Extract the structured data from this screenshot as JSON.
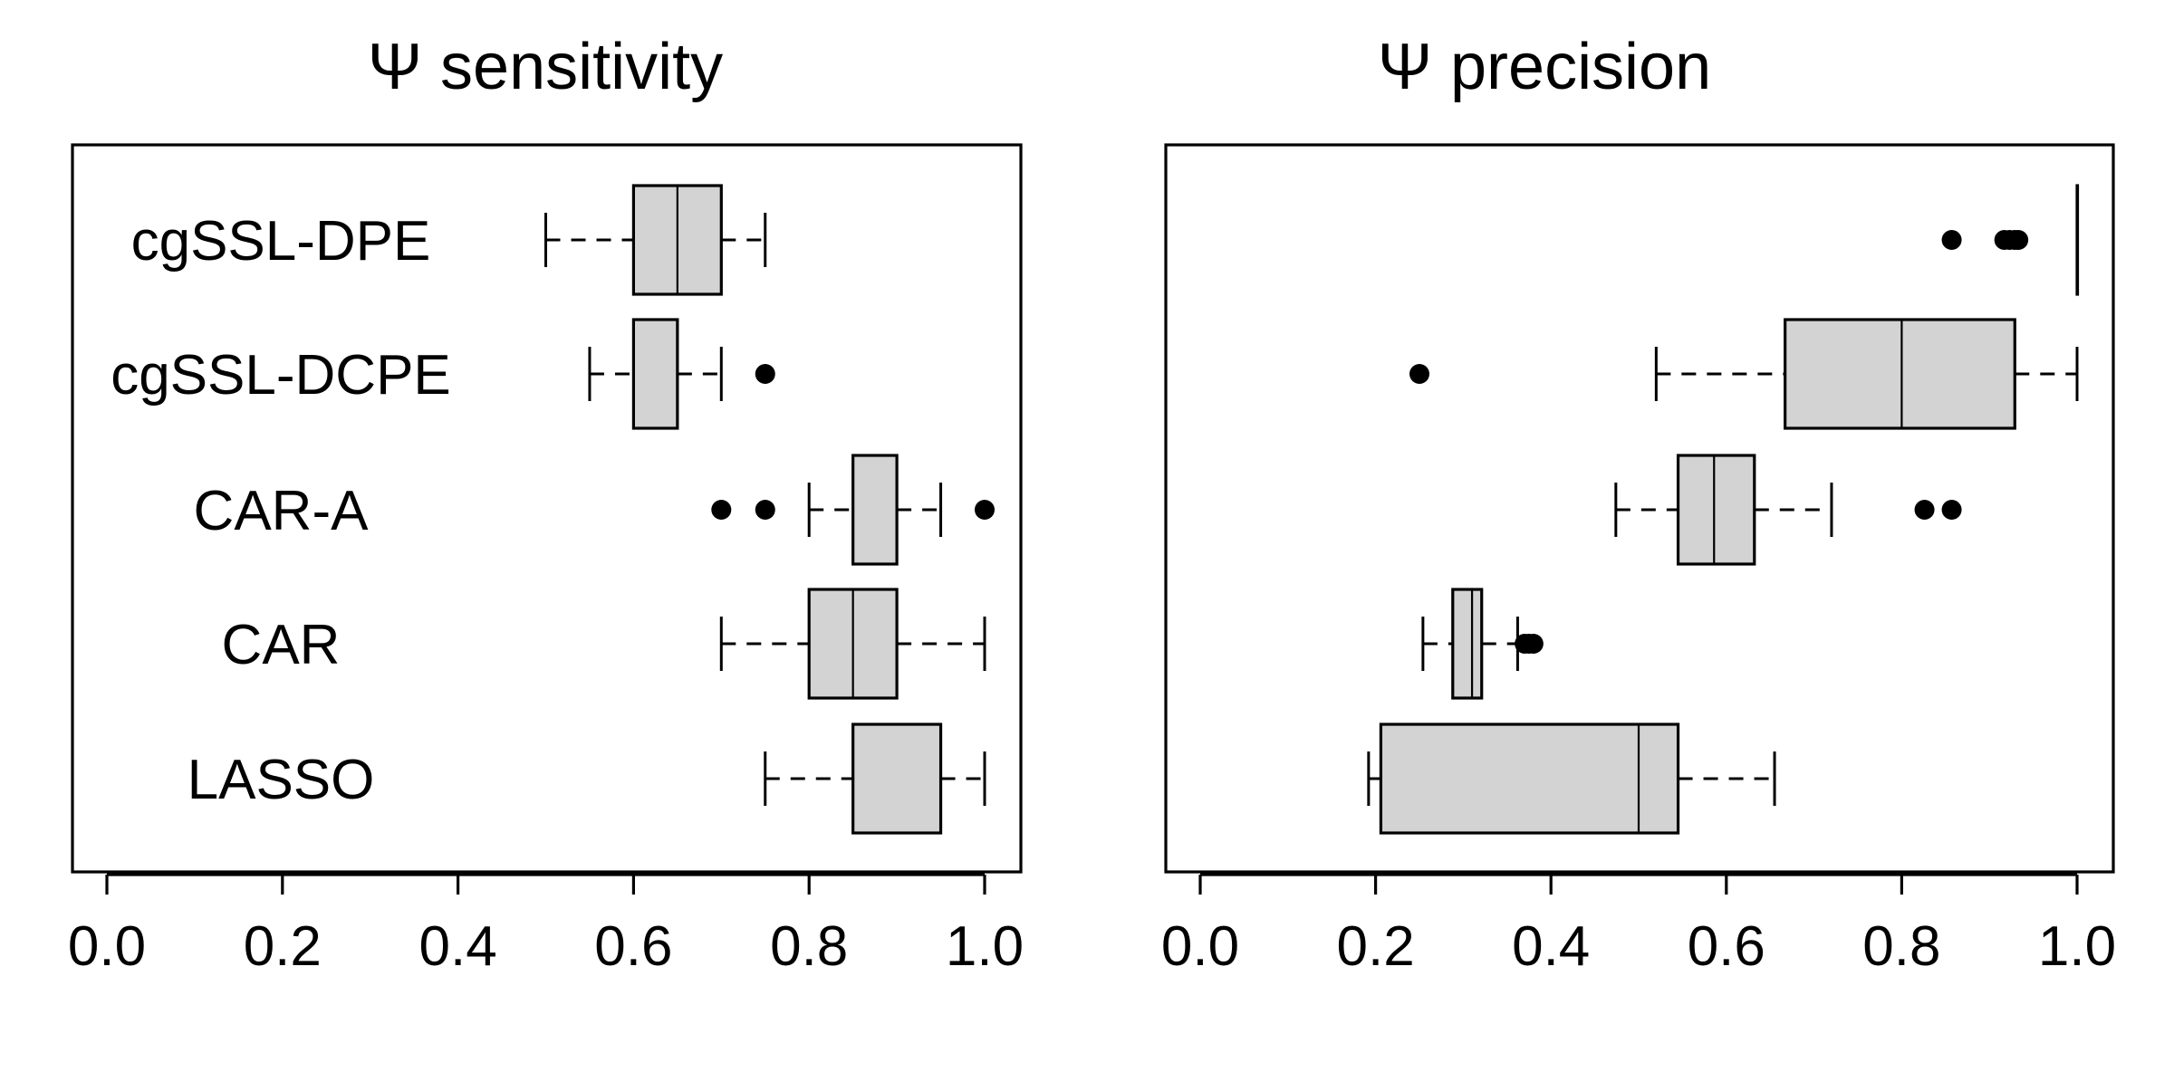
{
  "chart_data": [
    {
      "type": "boxplot",
      "orientation": "horizontal",
      "title": "Ψ sensitivity",
      "xlim": [
        0.0,
        1.0
      ],
      "xticks": [
        "0.0",
        "0.2",
        "0.4",
        "0.6",
        "0.8",
        "1.0"
      ],
      "box_fill": "#d3d3d3",
      "categories": [
        "cgSSL-DPE",
        "cgSSL-DCPE",
        "CAR-A",
        "CAR",
        "LASSO"
      ],
      "boxes": [
        {
          "name": "cgSSL-DPE",
          "whisker_low": 0.5,
          "q1": 0.6,
          "median": 0.65,
          "q3": 0.7,
          "whisker_high": 0.75,
          "outliers": []
        },
        {
          "name": "cgSSL-DCPE",
          "whisker_low": 0.55,
          "q1": 0.6,
          "median": 0.6,
          "q3": 0.65,
          "whisker_high": 0.7,
          "outliers": [
            0.75
          ]
        },
        {
          "name": "CAR-A",
          "whisker_low": 0.8,
          "q1": 0.85,
          "median": 0.85,
          "q3": 0.9,
          "whisker_high": 0.95,
          "outliers": [
            0.7,
            0.75,
            1.0
          ]
        },
        {
          "name": "CAR",
          "whisker_low": 0.7,
          "q1": 0.8,
          "median": 0.85,
          "q3": 0.9,
          "whisker_high": 1.0,
          "outliers": []
        },
        {
          "name": "LASSO",
          "whisker_low": 0.75,
          "q1": 0.85,
          "median": 0.85,
          "q3": 0.95,
          "whisker_high": 1.0,
          "outliers": []
        }
      ]
    },
    {
      "type": "boxplot",
      "orientation": "horizontal",
      "title": "Ψ precision",
      "xlim": [
        0.0,
        1.0
      ],
      "xticks": [
        "0.0",
        "0.2",
        "0.4",
        "0.6",
        "0.8",
        "1.0"
      ],
      "box_fill": "#d3d3d3",
      "categories": [
        "cgSSL-DPE",
        "cgSSL-DCPE",
        "CAR-A",
        "CAR",
        "LASSO"
      ],
      "boxes": [
        {
          "name": "cgSSL-DPE",
          "whisker_low": 1.0,
          "q1": 1.0,
          "median": 1.0,
          "q3": 1.0,
          "whisker_high": 1.0,
          "outliers": [
            0.857,
            0.917,
            0.923,
            0.929,
            0.933
          ]
        },
        {
          "name": "cgSSL-DCPE",
          "whisker_low": 0.52,
          "q1": 0.667,
          "median": 0.8,
          "q3": 0.929,
          "whisker_high": 1.0,
          "outliers": [
            0.25
          ]
        },
        {
          "name": "CAR-A",
          "whisker_low": 0.474,
          "q1": 0.545,
          "median": 0.586,
          "q3": 0.632,
          "whisker_high": 0.72,
          "outliers": [
            0.826,
            0.857
          ]
        },
        {
          "name": "CAR",
          "whisker_low": 0.254,
          "q1": 0.288,
          "median": 0.31,
          "q3": 0.321,
          "whisker_high": 0.362,
          "outliers": [
            0.37,
            0.375,
            0.38
          ]
        },
        {
          "name": "LASSO",
          "whisker_low": 0.192,
          "q1": 0.206,
          "median": 0.5,
          "q3": 0.545,
          "whisker_high": 0.655,
          "outliers": []
        }
      ]
    }
  ]
}
